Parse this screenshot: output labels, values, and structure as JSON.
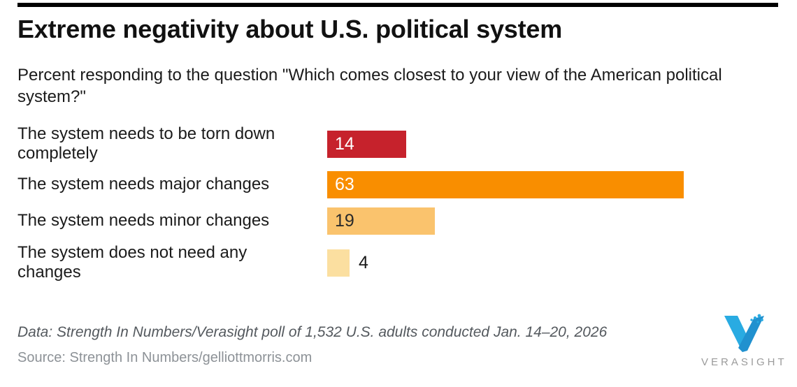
{
  "header": {
    "title": "Extreme negativity about U.S. political system",
    "subtitle": "Percent responding to the question \"Which comes closest to your view of the American political system?\""
  },
  "chart_data": {
    "type": "bar",
    "orientation": "horizontal",
    "title": "Extreme negativity about U.S. political system",
    "xlabel": "",
    "ylabel": "",
    "xlim": [
      0,
      79
    ],
    "grid": false,
    "legend": false,
    "categories": [
      "The system needs to be torn down\ncompletely",
      "The system needs major changes",
      "The system needs minor changes",
      "The system does not need any\nchanges"
    ],
    "values": [
      14,
      63,
      19,
      4
    ],
    "bar_colors": [
      "#c6222c",
      "#f98e00",
      "#fac36d",
      "#fbdfa0"
    ],
    "value_label_colors": [
      "#ffffff",
      "#ffffff",
      "#2a2a2a",
      "#1a1a1a"
    ],
    "value_label_inside": [
      true,
      true,
      true,
      false
    ]
  },
  "footer": {
    "data_note": "Data: Strength In Numbers/Verasight poll of 1,532 U.S. adults conducted Jan. 14–20, 2026",
    "source": "Source: Strength In Numbers/gelliottmorris.com"
  },
  "logo": {
    "wordmark": "VERASIGHT",
    "mark": "verasight-v-icon",
    "colors": {
      "light_blue": "#29abe2",
      "dark_blue": "#2191cf",
      "wordmark_gray": "#9b9b9b"
    }
  }
}
